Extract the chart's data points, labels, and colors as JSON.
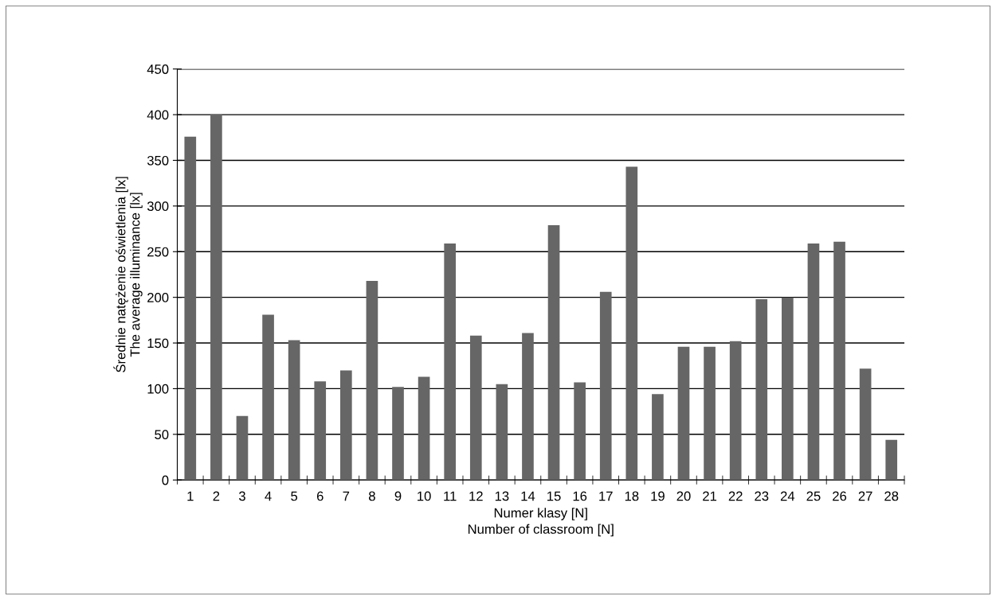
{
  "chart_data": {
    "type": "bar",
    "xlabel": "Numer klasy [N]\nNumber of classroom [N]",
    "ylabel": "Średnie natężenie oświetlenia [lx]\nThe average illuminance [lx]",
    "categories": [
      "1",
      "2",
      "3",
      "4",
      "5",
      "6",
      "7",
      "8",
      "9",
      "10",
      "11",
      "12",
      "13",
      "14",
      "15",
      "16",
      "17",
      "18",
      "19",
      "20",
      "21",
      "22",
      "23",
      "24",
      "25",
      "26",
      "27",
      "28"
    ],
    "values": [
      376,
      400,
      70,
      181,
      153,
      108,
      120,
      218,
      102,
      113,
      259,
      158,
      105,
      161,
      279,
      107,
      206,
      343,
      94,
      146,
      146,
      152,
      198,
      200,
      259,
      261,
      122,
      44
    ],
    "color": "#666666",
    "ylim": [
      0,
      450
    ],
    "yticks": [
      0,
      50,
      100,
      150,
      200,
      250,
      300,
      350,
      400,
      450
    ],
    "grid": "y"
  }
}
